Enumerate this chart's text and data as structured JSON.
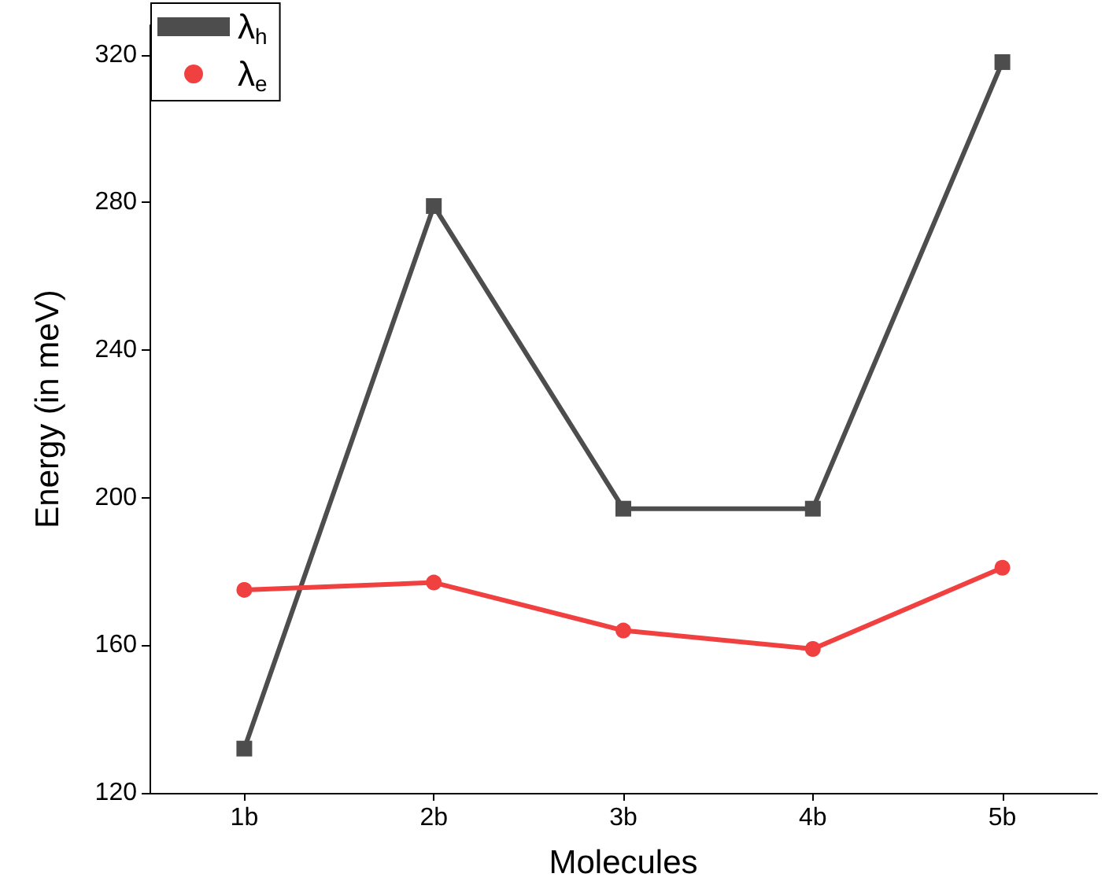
{
  "chart_data": {
    "type": "line",
    "xlabel": "Molecules",
    "ylabel": "Energy (in meV)",
    "categories": [
      "1b",
      "2b",
      "3b",
      "4b",
      "5b"
    ],
    "series": [
      {
        "name": "λ$_{h}$",
        "color": "#4d4d4d",
        "marker": "square",
        "values": [
          132,
          279,
          197,
          197,
          318
        ]
      },
      {
        "name": "λ$_{e}$",
        "color": "#f04040",
        "marker": "circle",
        "values": [
          175,
          177,
          164,
          159,
          181
        ]
      }
    ],
    "ylim": [
      120,
      328
    ],
    "yticks": [
      120,
      160,
      200,
      240,
      280,
      320
    ],
    "grid": false,
    "legend": "top left",
    "line_style": "solid"
  }
}
